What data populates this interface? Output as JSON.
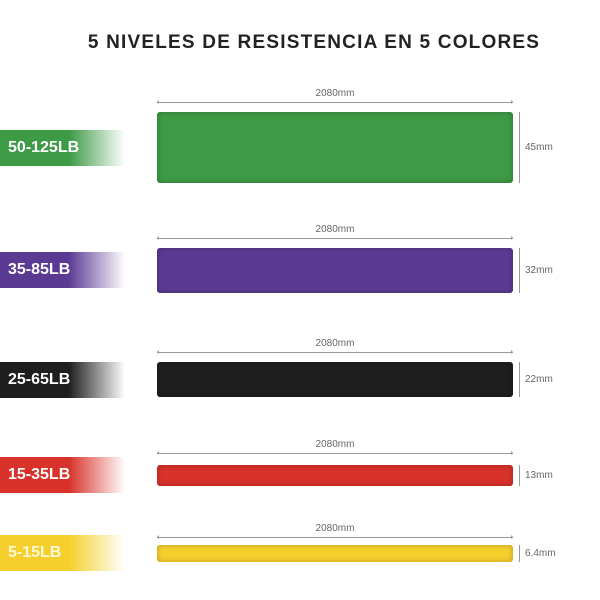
{
  "title": "5 NIVELES DE RESISTENCIA EN 5 COLORES",
  "bands": [
    {
      "resistance": "50-125LB",
      "length": "2080mm",
      "width": "45mm",
      "color": "#3d9a45"
    },
    {
      "resistance": "35-85LB",
      "length": "2080mm",
      "width": "32mm",
      "color": "#5b3a94"
    },
    {
      "resistance": "25-65LB",
      "length": "2080mm",
      "width": "22mm",
      "color": "#1e1e1e"
    },
    {
      "resistance": "15-35LB",
      "length": "2080mm",
      "width": "13mm",
      "color": "#d8322a"
    },
    {
      "resistance": "5-15LB",
      "length": "2080mm",
      "width": "6.4mm",
      "color": "#f5d02c"
    }
  ]
}
